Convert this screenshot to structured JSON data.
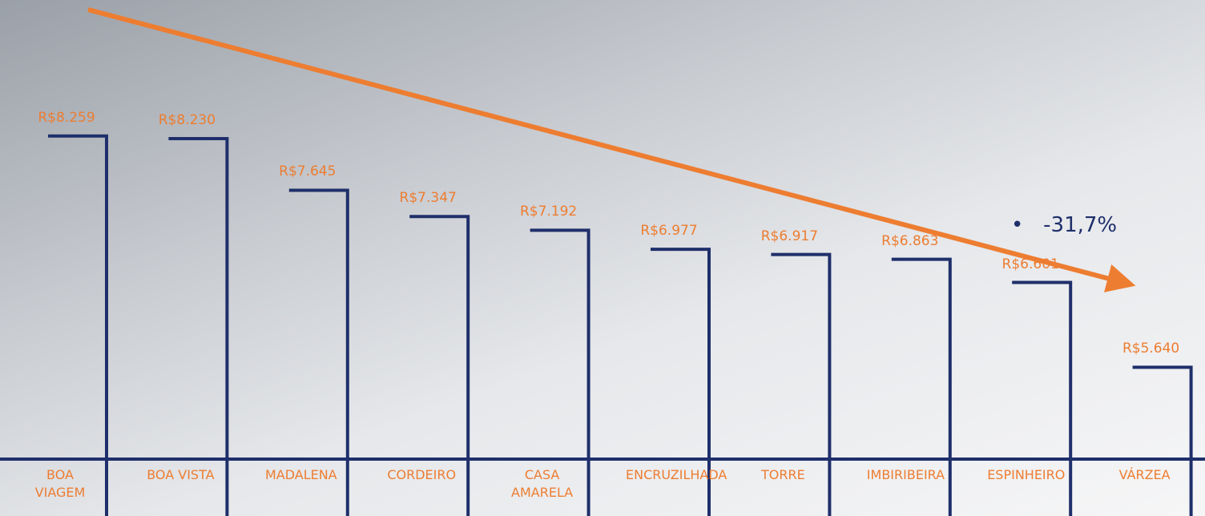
{
  "chart_data": {
    "type": "bracket",
    "categories": [
      "BOA VIAGEM",
      "BOA VISTA",
      "MADALENA",
      "CORDEIRO",
      "CASA AMARELA",
      "ENCRUZILHADA",
      "TORRE",
      "IMBIRIBEIRA",
      "ESPINHEIRO",
      "VÁRZEA"
    ],
    "values": [
      8259,
      8230,
      7645,
      7347,
      7192,
      6977,
      6917,
      6863,
      6601,
      5640
    ],
    "value_labels": [
      "R$8.259",
      "R$8.230",
      "R$7.645",
      "R$7.347",
      "R$7.192",
      "R$6.977",
      "R$6.917",
      "R$6.863",
      "R$6.601",
      "R$5.640"
    ],
    "color": "#1f2f6b",
    "label_color": "#ed7d31",
    "ylim": [
      4600,
      9800
    ],
    "annotation": "-31,7%"
  }
}
